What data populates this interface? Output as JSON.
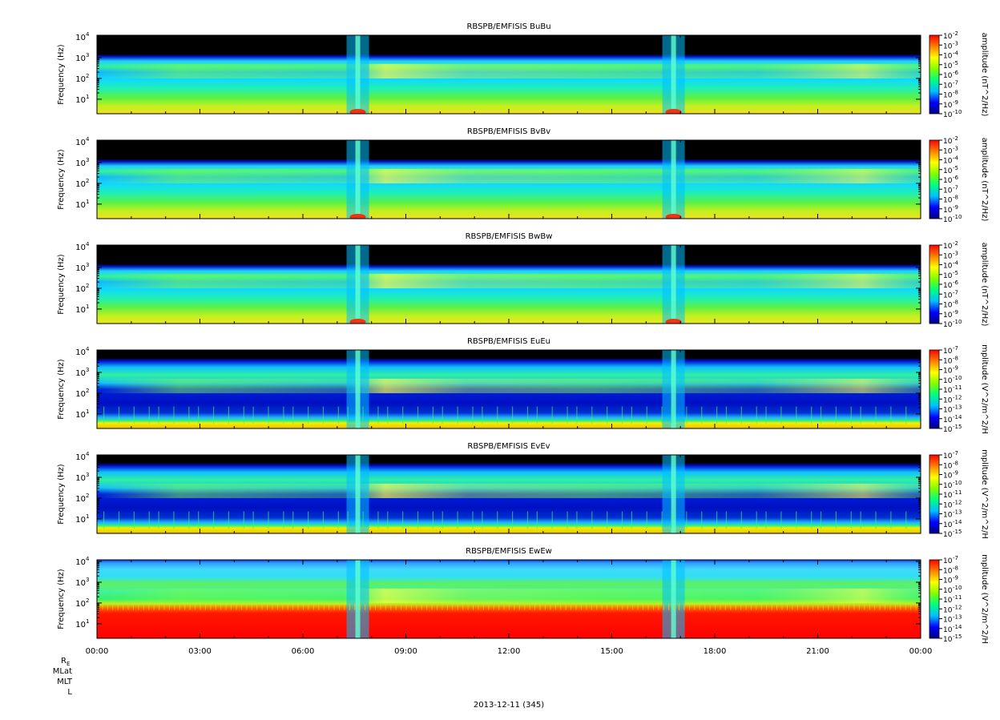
{
  "chart_data": {
    "type": "heatmap",
    "date_label": "2013-12-11 (345)",
    "x_tick_labels": [
      "00:00",
      "03:00",
      "06:00",
      "09:00",
      "12:00",
      "15:00",
      "18:00",
      "21:00",
      "00:00"
    ],
    "x_range_hours": [
      0,
      24
    ],
    "y_log_scale": true,
    "y_range_hz": [
      2,
      12000
    ],
    "y_tick_labels": [
      "10",
      "10",
      "10",
      "10"
    ],
    "y_tick_exponents": [
      "1",
      "2",
      "3",
      "4"
    ],
    "orbit_labels": [
      "R",
      "MLat",
      "MLT",
      "L"
    ],
    "orbit_label_subscript": "E",
    "colormap": [
      "#000080",
      "#0000ff",
      "#00bfff",
      "#00ff80",
      "#80ff00",
      "#ffff00",
      "#ff8000",
      "#ff0000"
    ],
    "panels": [
      {
        "title": "RBSPB/EMFISIS  BuBu",
        "ylabel": "Frequency (Hz)",
        "zlabel": "amplitude (nT^2/Hz)",
        "zlog": true,
        "z_exponents": [
          "-2",
          "-3",
          "-4",
          "-5",
          "-6",
          "-7",
          "-8",
          "-9",
          "-10"
        ]
      },
      {
        "title": "RBSPB/EMFISIS  BvBv",
        "ylabel": "Frequency (Hz)",
        "zlabel": "amplitude (nT^2/Hz)",
        "zlog": true,
        "z_exponents": [
          "-2",
          "-3",
          "-4",
          "-5",
          "-6",
          "-7",
          "-8",
          "-9",
          "-10"
        ]
      },
      {
        "title": "RBSPB/EMFISIS  BwBw",
        "ylabel": "Frequency (Hz)",
        "zlabel": "amplitude (nT^2/Hz)",
        "zlog": true,
        "z_exponents": [
          "-2",
          "-3",
          "-4",
          "-5",
          "-6",
          "-7",
          "-8",
          "-9",
          "-10"
        ]
      },
      {
        "title": "RBSPB/EMFISIS  EuEu",
        "ylabel": "Frequency (Hz)",
        "zlabel": "mplitude (V^2/m^2/H",
        "zlog": true,
        "z_exponents": [
          "-7",
          "-8",
          "-9",
          "-10",
          "-11",
          "-12",
          "-13",
          "-14",
          "-15"
        ]
      },
      {
        "title": "RBSPB/EMFISIS  EvEv",
        "ylabel": "Frequency (Hz)",
        "zlabel": "mplitude (V^2/m^2/H",
        "zlog": true,
        "z_exponents": [
          "-7",
          "-8",
          "-9",
          "-10",
          "-11",
          "-12",
          "-13",
          "-14",
          "-15"
        ]
      },
      {
        "title": "RBSPB/EMFISIS  EwEw",
        "ylabel": "Frequency (Hz)",
        "zlabel": "mplitude (V^2/m^2/H",
        "zlog": true,
        "z_exponents": [
          "-7",
          "-8",
          "-9",
          "-10",
          "-11",
          "-12",
          "-13",
          "-14",
          "-15"
        ]
      }
    ],
    "features": {
      "spike_times_hours": [
        7.6,
        16.8
      ],
      "magnetic_noise_band_hz": [
        50,
        500
      ]
    }
  }
}
